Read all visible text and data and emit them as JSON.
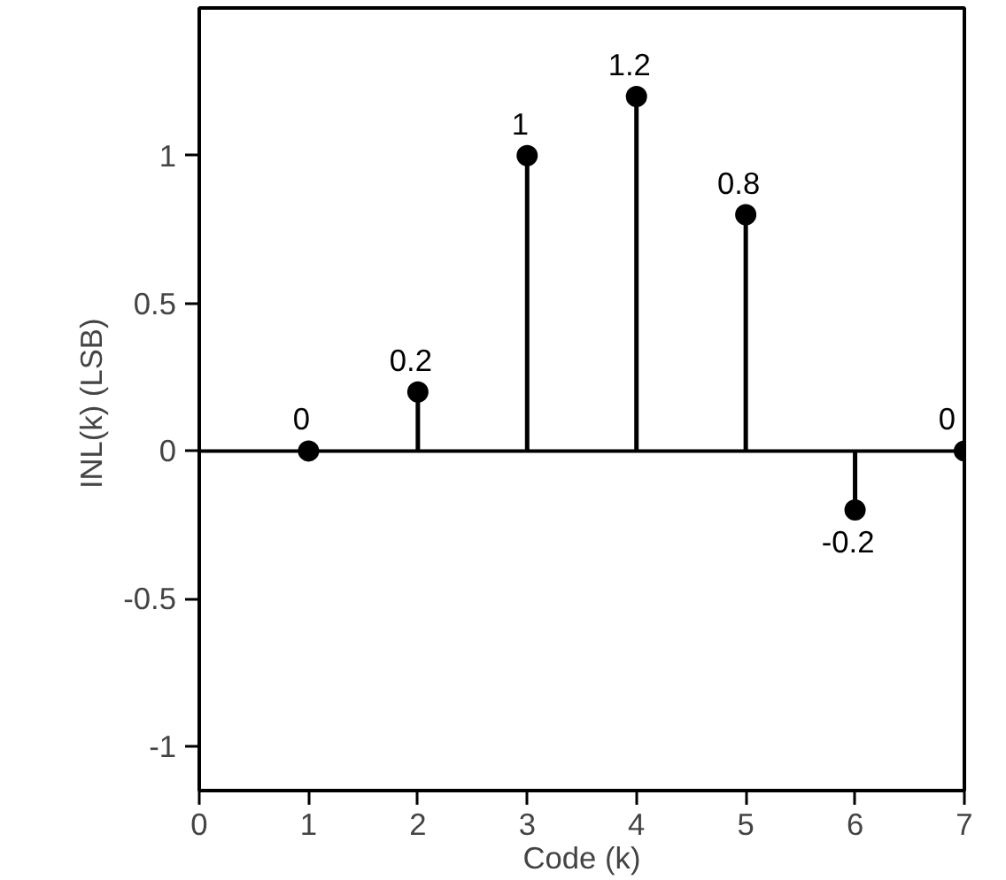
{
  "chart_data": {
    "type": "lollipop",
    "xlabel": "Code (k)",
    "ylabel": "INL(k)  (LSB)",
    "x": [
      1,
      2,
      3,
      4,
      5,
      6,
      7
    ],
    "series": [
      {
        "color": "#000000",
        "values": [
          0,
          0.2,
          1,
          1.2,
          0.8,
          -0.2,
          0
        ]
      }
    ],
    "data_labels": true,
    "marker": "circle",
    "grid": false,
    "xlim": [
      0,
      7
    ],
    "ylim": [
      -1.15,
      1.5
    ],
    "xticks": [
      0,
      1,
      2,
      3,
      4,
      5,
      6,
      7
    ],
    "yticks": [
      -1,
      -0.5,
      0,
      0.5,
      1
    ],
    "ref_lines": [
      {
        "axis": "y",
        "value": 0,
        "color": "#000000"
      }
    ]
  }
}
